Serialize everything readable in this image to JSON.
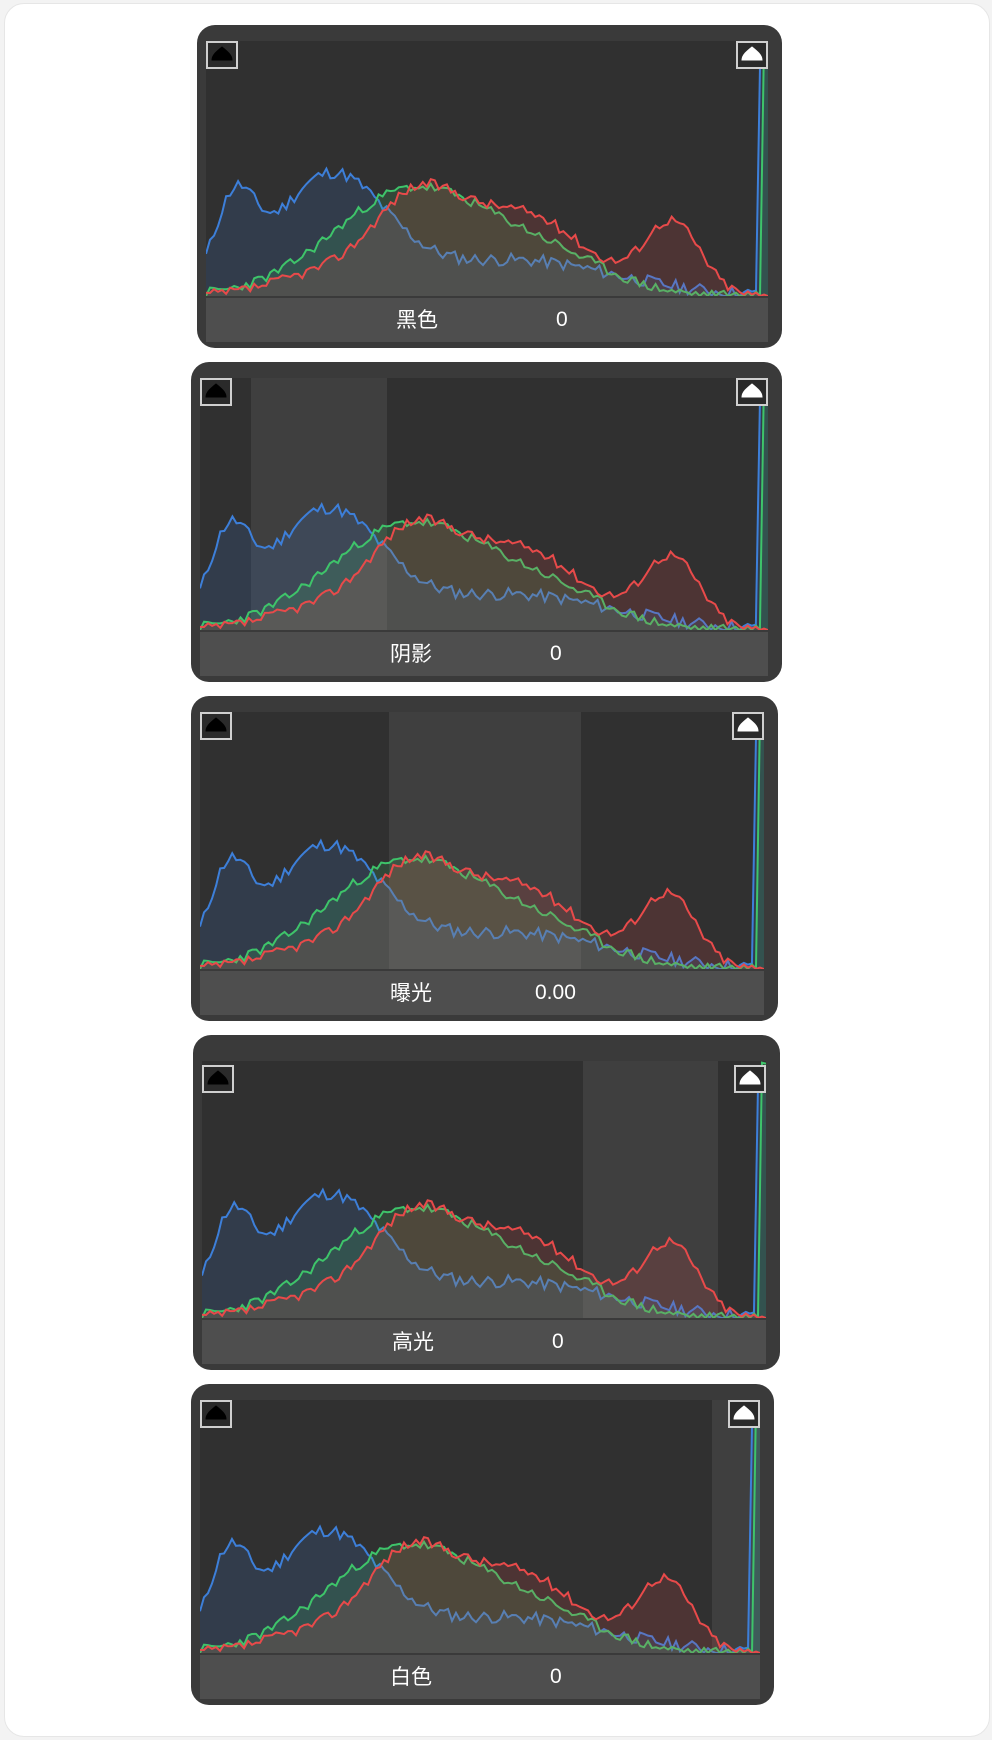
{
  "panels": [
    {
      "label": "黑色",
      "value": "0",
      "highlight": null
    },
    {
      "label": "阴影",
      "value": "0",
      "highlight": [
        0.09,
        0.33
      ]
    },
    {
      "label": "曝光",
      "value": "0.00",
      "highlight": [
        0.335,
        0.675
      ]
    },
    {
      "label": "高光",
      "value": "0",
      "highlight": [
        0.675,
        0.915
      ]
    },
    {
      "label": "白色",
      "value": "0",
      "highlight": [
        0.915,
        1.0
      ]
    }
  ],
  "histogram": {
    "colors": {
      "blue": "#3d7fd9",
      "green": "#3ec46a",
      "red": "#e84a4a"
    },
    "channels_visible": [
      "blue",
      "green",
      "red"
    ]
  },
  "icons": {
    "left_clip": "black-clipping-warning-icon",
    "right_clip": "white-clipping-warning-icon"
  }
}
